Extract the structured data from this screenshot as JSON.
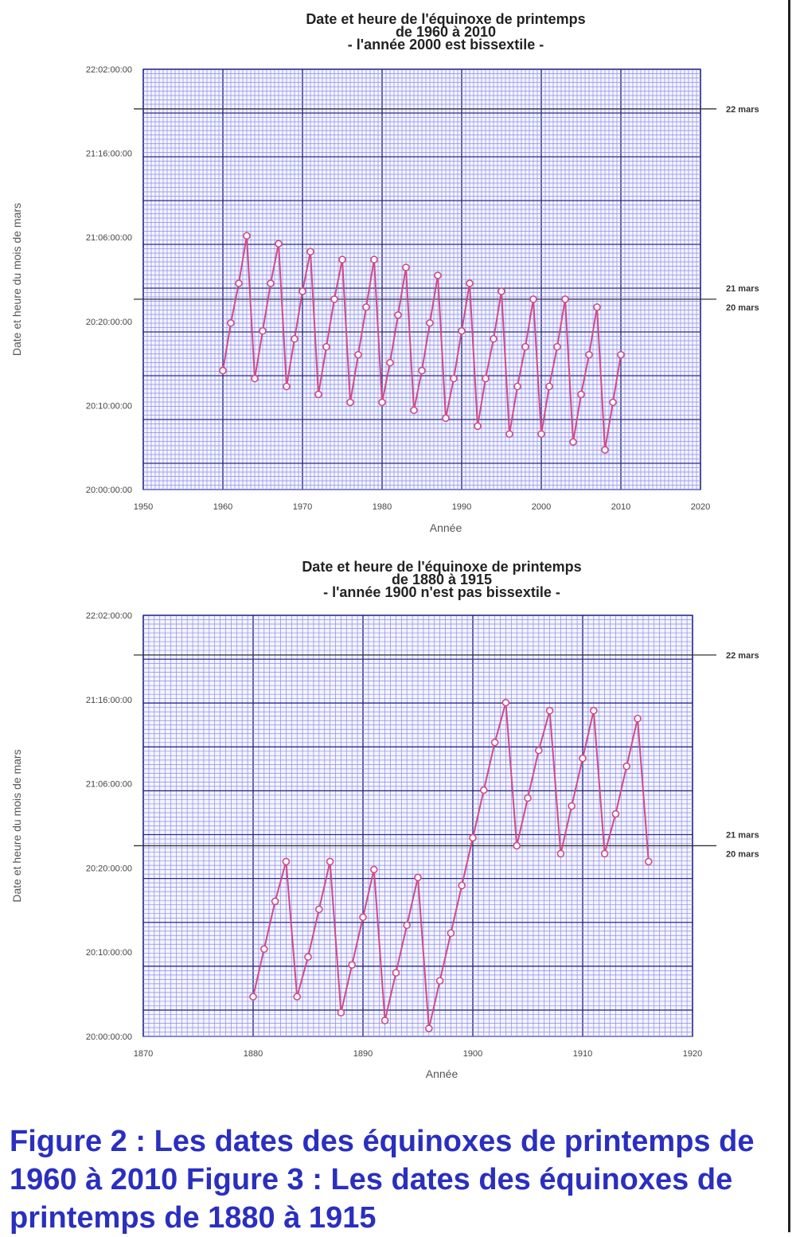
{
  "chart_data": [
    {
      "type": "line",
      "title": [
        "Date et heure de l'équinoxe de printemps",
        "de 1960 à 2010",
        "- l'année 2000 est bissextile -"
      ],
      "xlabel": "Année",
      "ylabel": "Date et heure du mois de mars",
      "xlim": [
        1950,
        2020
      ],
      "xticks": [
        1950,
        1960,
        1970,
        1980,
        1990,
        2000,
        2010,
        2020
      ],
      "ytick_labels": [
        "20:00:00:00",
        "20:10:00:00",
        "20:20:00:00",
        "21:06:00:00",
        "21:16:00:00",
        "22:02:00:00"
      ],
      "date_markers": [
        "22 mars",
        "21 mars",
        "20 mars"
      ],
      "grid": true,
      "color": "#d04a8a",
      "x": [
        1960,
        1961,
        1962,
        1963,
        1964,
        1965,
        1966,
        1967,
        1968,
        1969,
        1970,
        1971,
        1972,
        1973,
        1974,
        1975,
        1976,
        1977,
        1978,
        1979,
        1980,
        1981,
        1982,
        1983,
        1984,
        1985,
        1986,
        1987,
        1988,
        1989,
        1990,
        1991,
        1992,
        1993,
        1994,
        1995,
        1996,
        1997,
        1998,
        1999,
        2000,
        2001,
        2002,
        2003,
        2004,
        2005,
        2006,
        2007,
        2008,
        2009,
        2010
      ],
      "y_label_by_x": [
        "20 mars 15:00",
        "20 mars 21:00",
        "21 mars 02:00",
        "21 mars 08:00",
        "20 mars 14:00",
        "20 mars 20:00",
        "21 mars 02:00",
        "21 mars 07:00",
        "20 mars 13:00",
        "20 mars 19:00",
        "21 mars 01:00",
        "21 mars 06:00",
        "20 mars 12:00",
        "20 mars 18:00",
        "21 mars 00:00",
        "21 mars 05:00",
        "20 mars 11:00",
        "20 mars 17:00",
        "20 mars 23:00",
        "21 mars 05:00",
        "20 mars 11:00",
        "20 mars 16:00",
        "20 mars 22:00",
        "21 mars 04:00",
        "20 mars 10:00",
        "20 mars 15:00",
        "20 mars 21:00",
        "21 mars 03:00",
        "20 mars 09:00",
        "20 mars 14:00",
        "20 mars 20:00",
        "21 mars 02:00",
        "20 mars 08:00",
        "20 mars 14:00",
        "20 mars 19:00",
        "21 mars 01:00",
        "20 mars 07:00",
        "20 mars 13:00",
        "20 mars 18:00",
        "21 mars 00:00",
        "20 mars 07:00",
        "20 mars 13:00",
        "20 mars 18:00",
        "21 mars 00:00",
        "20 mars 06:00",
        "20 mars 12:00",
        "20 mars 17:00",
        "20 mars 23:00",
        "20 mars 05:00",
        "20 mars 11:00",
        "20 mars 17:00"
      ]
    },
    {
      "type": "line",
      "title": [
        "Date et heure de l'équinoxe de printemps",
        "de 1880 à 1915",
        "- l'année 1900 n'est pas bissextile -"
      ],
      "xlabel": "Année",
      "ylabel": "Date et heure du mois de mars",
      "xlim": [
        1870,
        1920
      ],
      "xticks": [
        1870,
        1880,
        1890,
        1900,
        1910,
        1920
      ],
      "ytick_labels": [
        "20:00:00:00",
        "20:10:00:00",
        "20:20:00:00",
        "21:06:00:00",
        "21:16:00:00",
        "22:02:00:00"
      ],
      "date_markers": [
        "22 mars",
        "21 mars",
        "20 mars"
      ],
      "grid": true,
      "color": "#d04a8a",
      "x": [
        1880,
        1881,
        1882,
        1883,
        1884,
        1885,
        1886,
        1887,
        1888,
        1889,
        1890,
        1891,
        1892,
        1893,
        1894,
        1895,
        1896,
        1897,
        1898,
        1899,
        1900,
        1901,
        1902,
        1903,
        1904,
        1905,
        1906,
        1907,
        1908,
        1909,
        1910,
        1911,
        1912,
        1913,
        1914,
        1915,
        1916
      ],
      "y_label_by_x": [
        "20 mars 05:00",
        "20 mars 11:00",
        "20 mars 17:00",
        "20 mars 22:00",
        "20 mars 05:00",
        "20 mars 10:00",
        "20 mars 16:00",
        "20 mars 22:00",
        "20 mars 03:00",
        "20 mars 09:00",
        "20 mars 15:00",
        "20 mars 21:00",
        "20 mars 02:00",
        "20 mars 08:00",
        "20 mars 14:00",
        "20 mars 20:00",
        "20 mars 01:00",
        "20 mars 07:00",
        "20 mars 13:00",
        "20 mars 19:00",
        "21 mars 01:00",
        "21 mars 07:00",
        "21 mars 13:00",
        "21 mars 18:00",
        "21 mars 00:00",
        "21 mars 06:00",
        "21 mars 12:00",
        "21 mars 17:00",
        "20 mars 23:00",
        "21 mars 05:00",
        "21 mars 11:00",
        "21 mars 17:00",
        "20 mars 23:00",
        "21 mars 04:00",
        "21 mars 10:00",
        "21 mars 16:00",
        "20 mars 22:00"
      ]
    }
  ],
  "caption": "Figure 2 : Les dates des équinoxes de printemps de 1960 à 2010 Figure 3 : Les dates des équinoxes de printemps de 1880 à 1915"
}
